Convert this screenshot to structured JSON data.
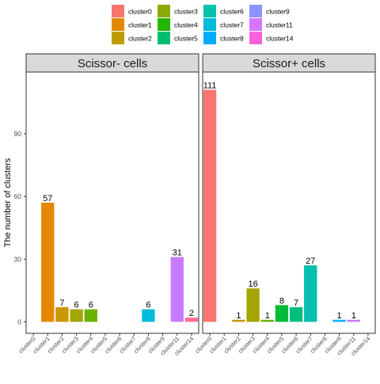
{
  "chart_data": {
    "type": "bar",
    "ylabel": "The number of clusters",
    "ylim": [
      0,
      120
    ],
    "yticks": [
      0,
      30,
      60,
      90
    ],
    "grid": false,
    "legend_position": "top",
    "categories": [
      "cluster0",
      "cluster1",
      "cluster2",
      "cluster3",
      "cluster4",
      "cluster5",
      "cluster6",
      "cluster7",
      "cluster8",
      "cluster9",
      "cluster11",
      "cluster14"
    ],
    "legend": {
      "labels": [
        "cluster0",
        "cluster1",
        "cluster2",
        "cluster3",
        "cluster4",
        "cluster5",
        "cluster6",
        "cluster7",
        "cluster8",
        "cluster9",
        "cluster11",
        "cluster14"
      ],
      "colors": [
        "#F8766D",
        "#E18A00",
        "#BE9C00",
        "#8CAB00",
        "#24B700",
        "#00BE70",
        "#00C1AB",
        "#00BBDA",
        "#00ACFC",
        "#8B93FF",
        "#D575FE",
        "#F962DD"
      ]
    },
    "colors": {
      "cluster0": "#F8766D",
      "cluster1": "#E58700",
      "cluster2": "#C99800",
      "cluster3": "#A3A500",
      "cluster4": "#6BB100",
      "cluster5": "#00BA38",
      "cluster6": "#00BF7D",
      "cluster7": "#00C0AF",
      "cluster8": "#00BCD8",
      "cluster9": "#00B0F6",
      "cluster11": "#C77CFF",
      "cluster14": "#FF6C91"
    },
    "panels": [
      {
        "title": "Scissor- cells",
        "values": [
          null,
          57,
          7,
          6,
          6,
          null,
          null,
          null,
          6,
          null,
          31,
          2
        ]
      },
      {
        "title": "Scissor+ cells",
        "values": [
          111,
          null,
          1,
          16,
          1,
          8,
          7,
          27,
          null,
          1,
          1,
          null
        ]
      }
    ]
  }
}
